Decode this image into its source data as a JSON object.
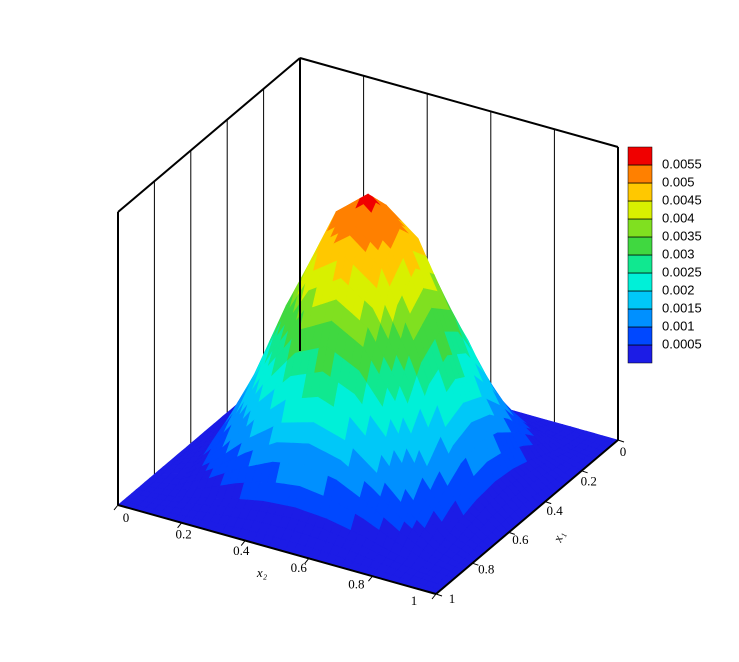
{
  "chart_data": {
    "type": "surface",
    "x": [
      0,
      0.1,
      0.2,
      0.3,
      0.4,
      0.5,
      0.6,
      0.7,
      0.8,
      0.9,
      1
    ],
    "y": [
      0,
      0.1,
      0.2,
      0.3,
      0.4,
      0.5,
      0.6,
      0.7,
      0.8,
      0.9,
      1
    ],
    "z": [
      [
        0,
        0,
        0,
        0,
        0,
        0,
        0,
        0,
        0,
        0,
        0
      ],
      [
        0,
        5e-05,
        0.00019,
        0.00036,
        0.00049,
        0.00054,
        0.00049,
        0.00036,
        0.00019,
        5e-05,
        0
      ],
      [
        0,
        0.00019,
        0.00068,
        0.00129,
        0.00178,
        0.00197,
        0.00178,
        0.00129,
        0.00068,
        0.00019,
        0
      ],
      [
        0,
        0.00036,
        0.00129,
        0.00244,
        0.00337,
        0.00373,
        0.00337,
        0.00244,
        0.00129,
        0.00036,
        0
      ],
      [
        0,
        0.00049,
        0.00178,
        0.00337,
        0.00466,
        0.00516,
        0.00466,
        0.00337,
        0.00178,
        0.00049,
        0
      ],
      [
        0,
        0.00054,
        0.00197,
        0.00373,
        0.00516,
        0.0057,
        0.00516,
        0.00373,
        0.00197,
        0.00054,
        0
      ],
      [
        0,
        0.00049,
        0.00178,
        0.00337,
        0.00466,
        0.00516,
        0.00466,
        0.00337,
        0.00178,
        0.00049,
        0
      ],
      [
        0,
        0.00036,
        0.00129,
        0.00244,
        0.00337,
        0.00373,
        0.00337,
        0.00244,
        0.00129,
        0.00036,
        0
      ],
      [
        0,
        0.00019,
        0.00068,
        0.00129,
        0.00178,
        0.00197,
        0.00178,
        0.00129,
        0.00068,
        0.00019,
        0
      ],
      [
        0,
        5e-05,
        0.00019,
        0.00036,
        0.00049,
        0.00054,
        0.00049,
        0.00036,
        0.00019,
        5e-05,
        0
      ],
      [
        0,
        0,
        0,
        0,
        0,
        0,
        0,
        0,
        0,
        0,
        0
      ]
    ],
    "xlabel": "x₁",
    "ylabel": "x₂",
    "xlim": [
      0,
      1
    ],
    "xticks": [
      0,
      0.2,
      0.4,
      0.6,
      0.8,
      1
    ],
    "ylim": [
      0,
      1
    ],
    "yticks": [
      0,
      0.2,
      0.4,
      0.6,
      0.8,
      1
    ],
    "zlim": [
      0,
      0.006
    ],
    "levels": [
      0.0005,
      0.001,
      0.0015,
      0.002,
      0.0025,
      0.003,
      0.0035,
      0.004,
      0.0045,
      0.005,
      0.0055
    ],
    "colors": [
      "#1c1ce6",
      "#0048ff",
      "#0090ff",
      "#00c8f8",
      "#00f0d8",
      "#10e890",
      "#40d840",
      "#80e020",
      "#d8f000",
      "#ffc800",
      "#ff8000",
      "#f00000"
    ]
  }
}
